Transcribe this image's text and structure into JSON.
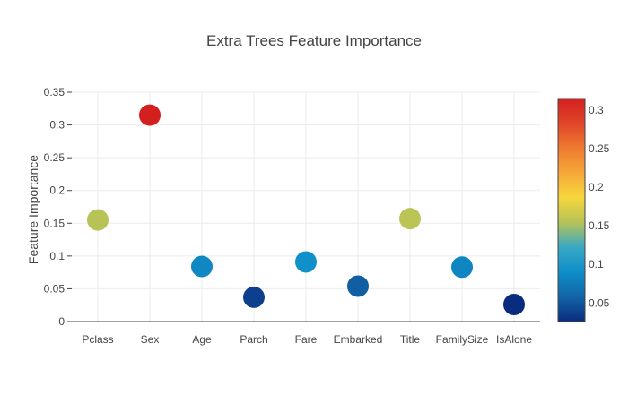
{
  "chart_data": {
    "type": "scatter",
    "title": "Extra Trees Feature Importance",
    "xlabel": "",
    "ylabel": "Feature Importance",
    "categories": [
      "Pclass",
      "Sex",
      "Age",
      "Parch",
      "Fare",
      "Embarked",
      "Title",
      "FamilySize",
      "IsAlone"
    ],
    "values": [
      0.155,
      0.315,
      0.084,
      0.037,
      0.091,
      0.054,
      0.157,
      0.083,
      0.026
    ],
    "ylim": [
      0,
      0.35
    ],
    "yticks": [
      "0",
      "0.05",
      "0.1",
      "0.15",
      "0.2",
      "0.25",
      "0.3",
      "0.35"
    ],
    "grid": true,
    "legend": "none",
    "colorbar": {
      "position": "right",
      "range": [
        0.026,
        0.315
      ],
      "ticks": [
        "0.05",
        "0.1",
        "0.15",
        "0.2",
        "0.25",
        "0.3"
      ],
      "colorscale": [
        "#0a2c7e",
        "#1265a8",
        "#0e8fc8",
        "#3aa8c4",
        "#b6c357",
        "#f6d63c",
        "#f5a838",
        "#ee7a30",
        "#e0452a",
        "#d41f1f"
      ]
    }
  }
}
